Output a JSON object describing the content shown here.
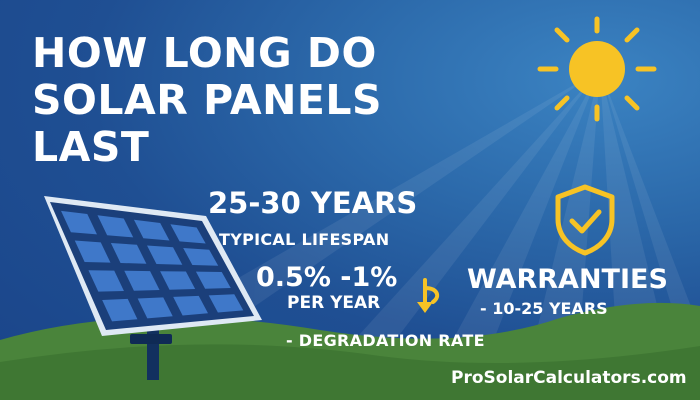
{
  "title": {
    "line1": "HOW LONG DO",
    "line2": "SOLAR PANELS",
    "line3": "LAST"
  },
  "lifespan": {
    "value": "25-30 YEARS",
    "caption": "TYPICAL LIFESPAN"
  },
  "degradation": {
    "value": "0.5% -1%",
    "unit": "PER YEAR",
    "caption": "- DEGRADATION RATE"
  },
  "warranty": {
    "title": "WARRANTIES",
    "value": "- 10-25 YEARS"
  },
  "website": "ProSolarCalculators.com",
  "icons": {
    "sun": "sun-icon",
    "shield": "shield-check-icon",
    "arrow": "down-arrow-icon",
    "panel": "solar-panel-illustration"
  },
  "colors": {
    "background": "#1f4f93",
    "text": "#ffffff",
    "accent": "#f7c325",
    "grass": "#4f8a3f",
    "panel_cell": "#3f78c9"
  }
}
